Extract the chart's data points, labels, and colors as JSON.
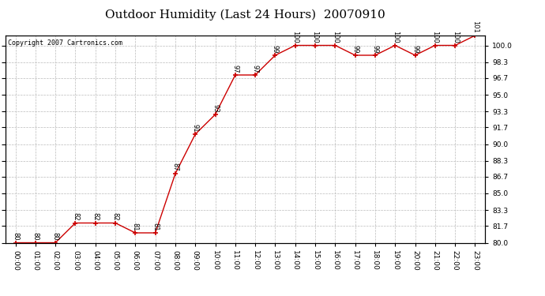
{
  "title": "Outdoor Humidity (Last 24 Hours)  20070910",
  "copyright": "Copyright 2007 Cartronics.com",
  "x_labels": [
    "00:00",
    "01:00",
    "02:00",
    "03:00",
    "04:00",
    "05:00",
    "06:00",
    "07:00",
    "08:00",
    "09:00",
    "10:00",
    "11:00",
    "12:00",
    "13:00",
    "14:00",
    "15:00",
    "16:00",
    "17:00",
    "18:00",
    "19:00",
    "20:00",
    "21:00",
    "22:00",
    "23:00"
  ],
  "y_values": [
    80,
    80,
    80,
    82,
    82,
    82,
    81,
    81,
    87,
    91,
    93,
    97,
    97,
    99,
    100,
    100,
    100,
    99,
    99,
    100,
    99,
    100,
    100,
    101
  ],
  "ylim": [
    80.0,
    101.0
  ],
  "yticks": [
    80.0,
    81.7,
    83.3,
    85.0,
    86.7,
    88.3,
    90.0,
    91.7,
    93.3,
    95.0,
    96.7,
    98.3,
    100.0
  ],
  "line_color": "#cc0000",
  "marker_color": "#cc0000",
  "bg_color": "#ffffff",
  "grid_color": "#bbbbbb",
  "title_fontsize": 11,
  "copyright_fontsize": 6,
  "label_fontsize": 6,
  "tick_fontsize": 6.5
}
